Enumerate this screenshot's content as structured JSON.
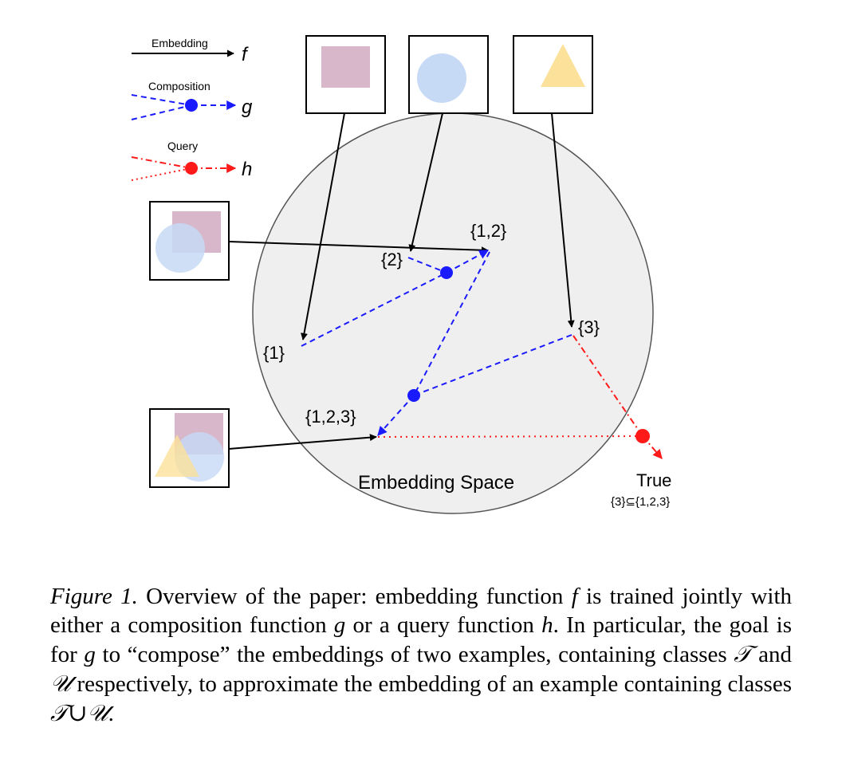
{
  "legend": {
    "embedding_label": "Embedding",
    "embedding_symbol": "f",
    "composition_label": "Composition",
    "composition_symbol": "g",
    "query_label": "Query",
    "query_symbol": "h"
  },
  "embedding_space_label": "Embedding Space",
  "points": {
    "p12": "{1,2}",
    "p2": "{2}",
    "p1": "{1}",
    "p3": "{3}",
    "p123": "{1,2,3}"
  },
  "query_result": {
    "value": "True",
    "condition": "{3}⊆{1,2,3}"
  },
  "caption": {
    "figure": "Figure 1.",
    "part1": " Overview of the paper: embedding function ",
    "f": "f",
    "part2": " is trained jointly with either a composition function ",
    "g": "g",
    "part3": " or a query function ",
    "h": "h",
    "part4": ". In particular, the goal is for ",
    "g2": "g",
    "part5": " to “compose” the embeddings of two examples, containing classes ",
    "T": "𝒯",
    "part6": " and ",
    "U": "𝒰",
    "part7": " respectively, to approximate the embedding of an example containing classes ",
    "TU": "𝒯∪𝒰",
    "part8": "."
  },
  "colors": {
    "embedding": "#000000",
    "composition": "#1a1aff",
    "query": "#ff1a1a",
    "space_fill": "#efefef",
    "square": "#d8b7cb",
    "circle": "#c7daf5",
    "triangle": "#fbe19a"
  }
}
